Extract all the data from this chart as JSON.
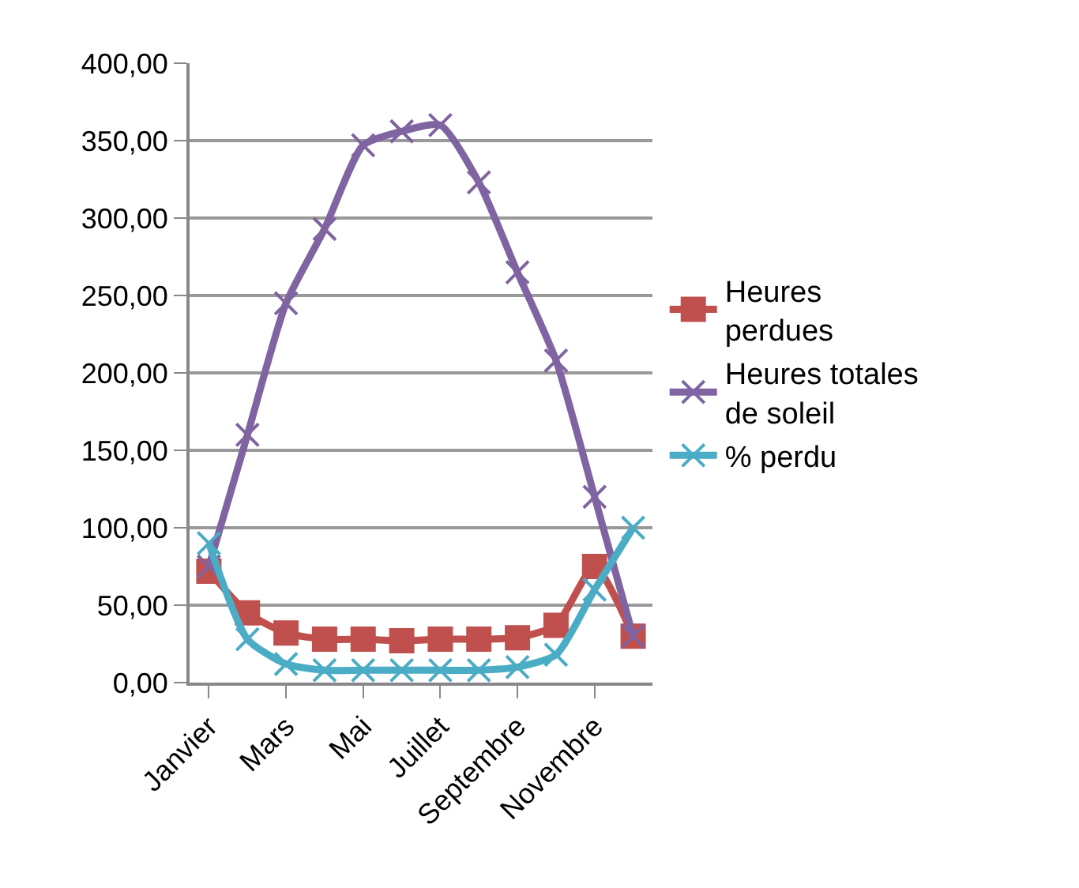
{
  "chart_data": {
    "type": "line",
    "categories": [
      "Janvier",
      null,
      "Mars",
      null,
      "Mai",
      null,
      "Juillet",
      null,
      "Septembre",
      null,
      "Novembre",
      null
    ],
    "ylim": [
      0,
      400
    ],
    "yticks": [
      {
        "value": 0,
        "label": "0,00"
      },
      {
        "value": 50,
        "label": "50,00"
      },
      {
        "value": 100,
        "label": "100,00"
      },
      {
        "value": 150,
        "label": "150,00"
      },
      {
        "value": 200,
        "label": "200,00"
      },
      {
        "value": 250,
        "label": "250,00"
      },
      {
        "value": 300,
        "label": "300,00"
      },
      {
        "value": 350,
        "label": "350,00"
      },
      {
        "value": 400,
        "label": "400,00"
      }
    ],
    "grid": "y",
    "legend": "right",
    "series": [
      {
        "name": "Heures perdues",
        "color": "#c0504d",
        "marker": "square",
        "values": [
          72,
          45,
          32,
          28,
          28,
          27,
          28,
          28,
          29,
          37,
          75,
          30
        ]
      },
      {
        "name": "Heures totales de soleil",
        "color": "#8064a2",
        "marker": "cross",
        "values": [
          75,
          160,
          245,
          293,
          347,
          356,
          360,
          323,
          265,
          208,
          120,
          30
        ]
      },
      {
        "name": "% perdu",
        "color": "#4bacc6",
        "marker": "cross",
        "values": [
          90,
          28,
          12,
          8,
          8,
          8,
          8,
          8,
          10,
          18,
          60,
          100
        ]
      }
    ]
  }
}
